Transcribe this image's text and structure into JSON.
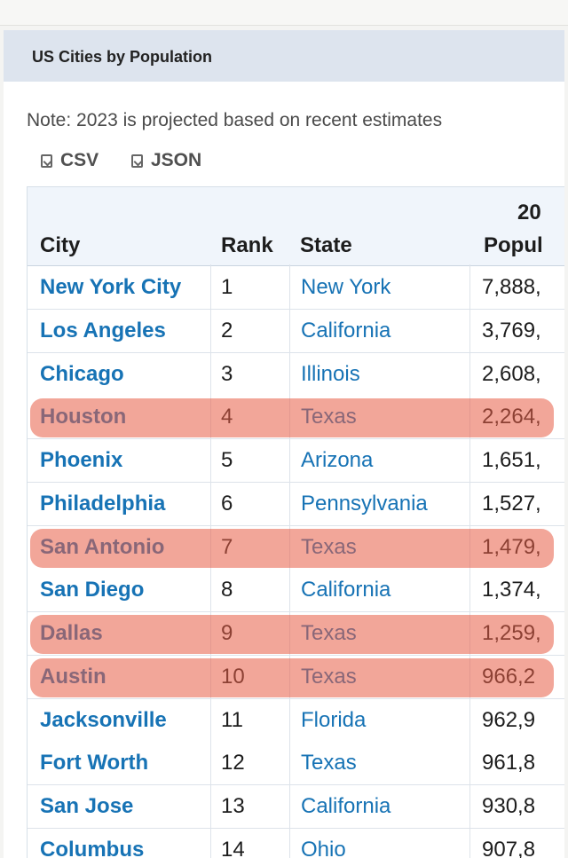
{
  "table": {
    "title": "US Cities by Population",
    "note": "Note: 2023 is projected based on recent estimates",
    "downloads": [
      {
        "label": "CSV",
        "icon": "download-file-icon"
      },
      {
        "label": "JSON",
        "icon": "download-file-icon"
      }
    ],
    "headers": {
      "city": "City",
      "rank": "Rank",
      "state": "State",
      "year": "20",
      "population": "Popul"
    },
    "rows": [
      {
        "city": "New York City",
        "rank": "1",
        "state": "New York",
        "population": "7,888,"
      },
      {
        "city": "Los Angeles",
        "rank": "2",
        "state": "California",
        "population": "3,769,"
      },
      {
        "city": "Chicago",
        "rank": "3",
        "state": "Illinois",
        "population": "2,608,"
      },
      {
        "city": "Houston",
        "rank": "4",
        "state": "Texas",
        "population": "2,264,"
      },
      {
        "city": "Phoenix",
        "rank": "5",
        "state": "Arizona",
        "population": "1,651,"
      },
      {
        "city": "Philadelphia",
        "rank": "6",
        "state": "Pennsylvania",
        "population": "1,527,"
      },
      {
        "city": "San Antonio",
        "rank": "7",
        "state": "Texas",
        "population": "1,479,"
      },
      {
        "city": "San Diego",
        "rank": "8",
        "state": "California",
        "population": "1,374,"
      },
      {
        "city": "Dallas",
        "rank": "9",
        "state": "Texas",
        "population": "1,259,"
      },
      {
        "city": "Austin",
        "rank": "10",
        "state": "Texas",
        "population": "966,2"
      },
      {
        "city": "Jacksonville",
        "rank": "11",
        "state": "Florida",
        "population": "962,9"
      },
      {
        "city": "Fort Worth",
        "rank": "12",
        "state": "Texas",
        "population": "961,8"
      },
      {
        "city": "San Jose",
        "rank": "13",
        "state": "California",
        "population": "930,8"
      },
      {
        "city": "Columbus",
        "rank": "14",
        "state": "Ohio",
        "population": "907,8"
      }
    ]
  },
  "highlights": {
    "color": "#e85c46",
    "rows": [
      "Houston",
      "San Antonio",
      "Dallas",
      "Austin"
    ]
  }
}
